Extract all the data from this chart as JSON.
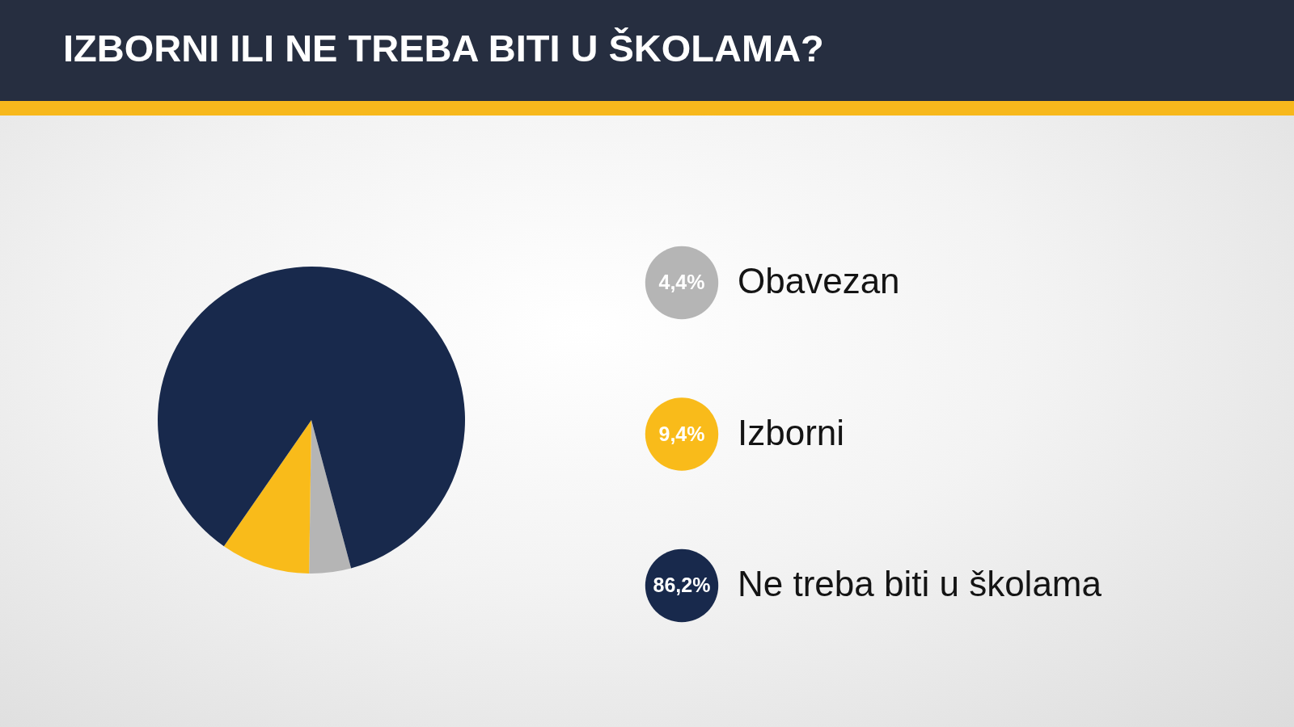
{
  "chart_data": {
    "type": "pie",
    "title": "IZBORNI ILI NE TREBA BITI U ŠKOLAMA?",
    "categories": [
      "Obavezan",
      "Izborni",
      "Ne treba biti u školama"
    ],
    "values": [
      4.4,
      9.4,
      86.2
    ],
    "colors": [
      "#b5b5b5",
      "#f9bb1a",
      "#18294c"
    ],
    "value_labels": [
      "4,4%",
      "9,4%",
      "86,2%"
    ],
    "legend": "right"
  }
}
